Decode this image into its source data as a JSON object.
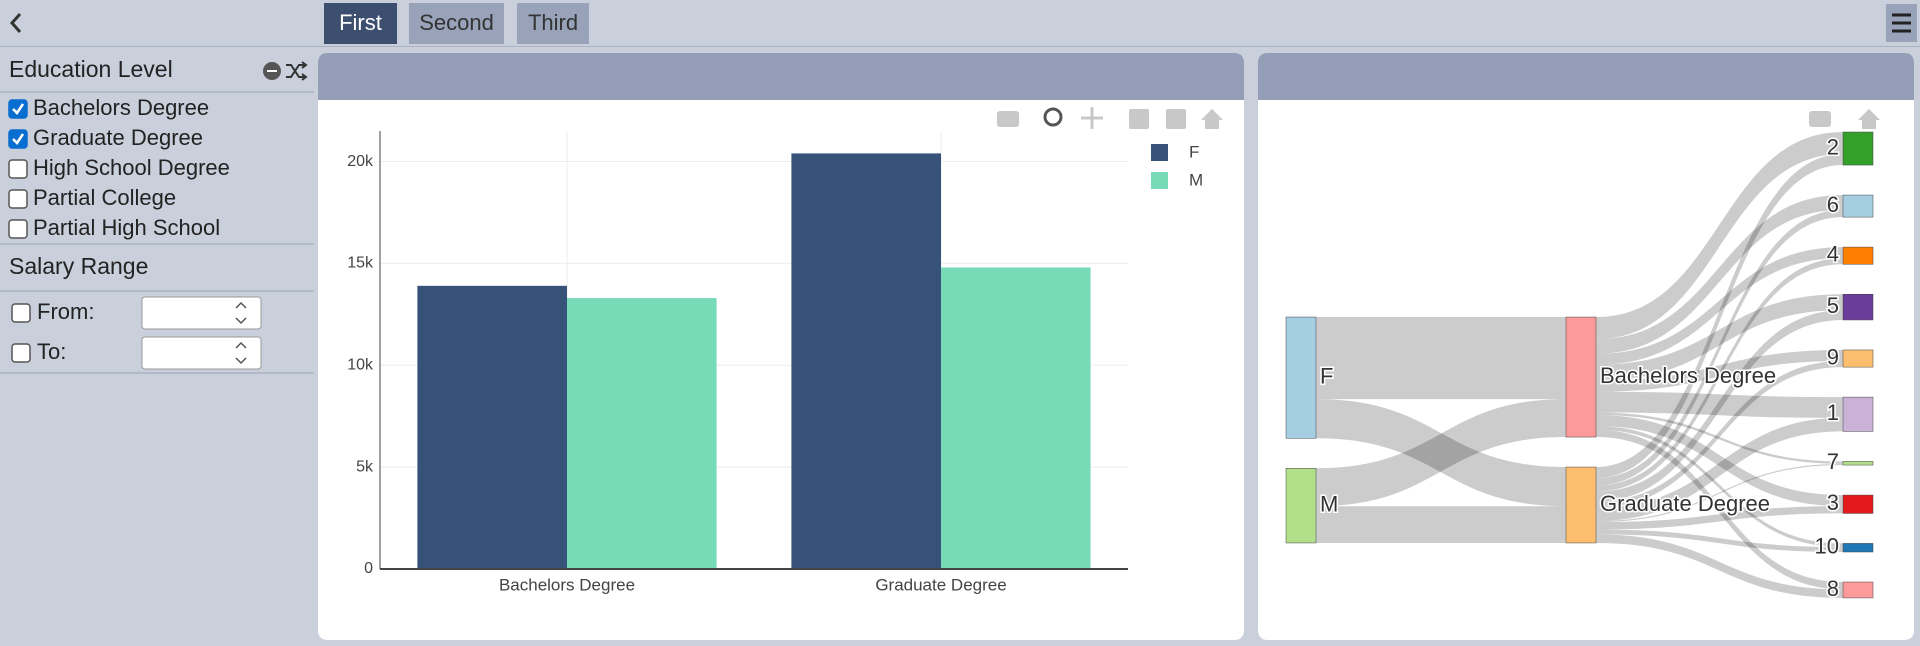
{
  "tabs": [
    {
      "label": "First",
      "active": true
    },
    {
      "label": "Second",
      "active": false
    },
    {
      "label": "Third",
      "active": false
    }
  ],
  "sidebar": {
    "education": {
      "title": "Education Level",
      "options": [
        {
          "label": "Bachelors Degree",
          "checked": true
        },
        {
          "label": "Graduate Degree",
          "checked": true
        },
        {
          "label": "High School Degree",
          "checked": false
        },
        {
          "label": "Partial College",
          "checked": false
        },
        {
          "label": "Partial High School",
          "checked": false
        }
      ]
    },
    "salary": {
      "title": "Salary Range",
      "fields": [
        {
          "label": "From:",
          "checked": false
        },
        {
          "label": "To:",
          "checked": false
        }
      ]
    }
  },
  "chart_data": [
    {
      "type": "bar",
      "categories": [
        "Bachelors Degree",
        "Graduate Degree"
      ],
      "series": [
        {
          "name": "F",
          "color": "#375279",
          "values": [
            13900,
            20400
          ]
        },
        {
          "name": "M",
          "color": "#77dbb7",
          "values": [
            13300,
            14800
          ]
        }
      ],
      "ylim": [
        0,
        21500
      ],
      "yticks": [
        0,
        {
          "value": 5000,
          "label": "5k"
        },
        {
          "value": 10000,
          "label": "10k"
        },
        {
          "value": 15000,
          "label": "15k"
        },
        {
          "value": 20000,
          "label": "20k"
        }
      ],
      "grid": true,
      "legend": "top-right"
    },
    {
      "type": "sankey",
      "nodes": [
        {
          "label": "F",
          "color": "#a6cee3"
        },
        {
          "label": "M",
          "color": "#b2df8a"
        },
        {
          "label": "Bachelors Degree",
          "color": "#fb9a99"
        },
        {
          "label": "Graduate Degree",
          "color": "#fdbf6f"
        },
        {
          "label": "2",
          "color": "#33a02c"
        },
        {
          "label": "6",
          "color": "#a6cee3"
        },
        {
          "label": "4",
          "color": "#ff7f00"
        },
        {
          "label": "5",
          "color": "#6a3d9a"
        },
        {
          "label": "9",
          "color": "#fdbf6f"
        },
        {
          "label": "1",
          "color": "#cab2d6"
        },
        {
          "label": "7",
          "color": "#b2df8a"
        },
        {
          "label": "3",
          "color": "#e31a1c"
        },
        {
          "label": "10",
          "color": "#1f78b4"
        },
        {
          "label": "8",
          "color": "#fb9a99"
        }
      ],
      "links": [
        {
          "source": 0,
          "target": 2,
          "value": 67
        },
        {
          "source": 0,
          "target": 3,
          "value": 32
        },
        {
          "source": 1,
          "target": 2,
          "value": 31
        },
        {
          "source": 1,
          "target": 3,
          "value": 30
        },
        {
          "source": 2,
          "target": 4,
          "value": 18
        },
        {
          "source": 2,
          "target": 5,
          "value": 12
        },
        {
          "source": 2,
          "target": 6,
          "value": 9
        },
        {
          "source": 2,
          "target": 7,
          "value": 13
        },
        {
          "source": 2,
          "target": 8,
          "value": 9
        },
        {
          "source": 2,
          "target": 9,
          "value": 17
        },
        {
          "source": 2,
          "target": 10,
          "value": 2
        },
        {
          "source": 2,
          "target": 11,
          "value": 9
        },
        {
          "source": 2,
          "target": 12,
          "value": 3
        },
        {
          "source": 2,
          "target": 13,
          "value": 6
        },
        {
          "source": 3,
          "target": 4,
          "value": 9
        },
        {
          "source": 3,
          "target": 5,
          "value": 6
        },
        {
          "source": 3,
          "target": 6,
          "value": 5
        },
        {
          "source": 3,
          "target": 7,
          "value": 8
        },
        {
          "source": 3,
          "target": 8,
          "value": 5
        },
        {
          "source": 3,
          "target": 9,
          "value": 11
        },
        {
          "source": 3,
          "target": 10,
          "value": 1
        },
        {
          "source": 3,
          "target": 11,
          "value": 6
        },
        {
          "source": 3,
          "target": 12,
          "value": 4
        },
        {
          "source": 3,
          "target": 13,
          "value": 7
        }
      ]
    }
  ]
}
